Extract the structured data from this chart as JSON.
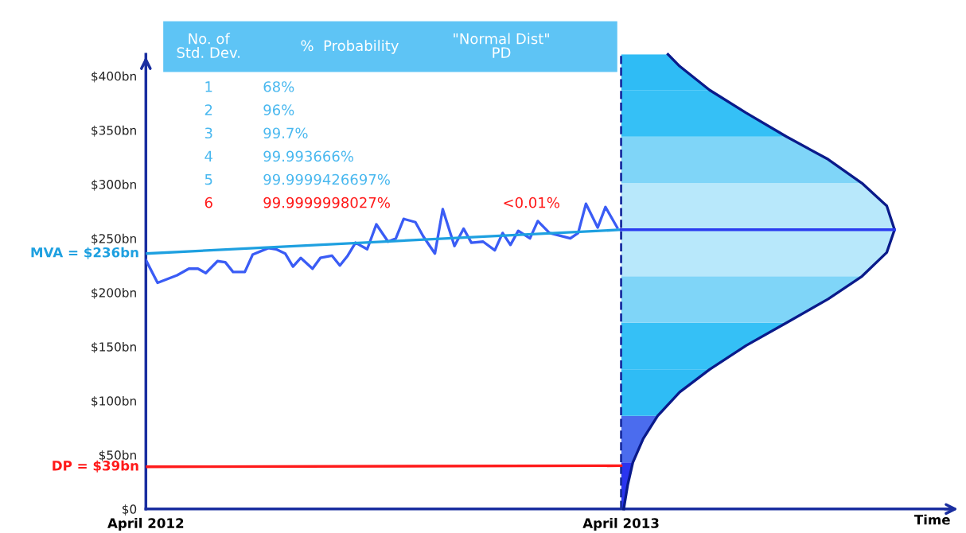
{
  "chart_data": {
    "type": "line",
    "xlabel": "Time",
    "xlim": [
      "2012-04-01",
      "2013-12-10"
    ],
    "ylim": [
      0,
      420
    ],
    "xticks": [
      {
        "value": "2012-04-01",
        "label": "April 2012"
      },
      {
        "value": "2013-04-01",
        "label": "April 2013"
      }
    ],
    "yticks": [
      {
        "value": 0,
        "label": "$0"
      },
      {
        "value": 50,
        "label": "$50bn"
      },
      {
        "value": 100,
        "label": "$100bn"
      },
      {
        "value": 150,
        "label": "$150bn"
      },
      {
        "value": 200,
        "label": "$200bn"
      },
      {
        "value": 250,
        "label": "$250bn"
      },
      {
        "value": 300,
        "label": "$300bn"
      },
      {
        "value": 350,
        "label": "$350bn"
      },
      {
        "value": 400,
        "label": "$400bn"
      }
    ],
    "grid": false,
    "legend": false,
    "marker": "none",
    "line_style": "solid",
    "annotations": [
      "No. of\nStd. Dev.",
      "%  Probability",
      "\"Normal Dist\"\nPD",
      "1",
      "68%",
      "2",
      "96%",
      "3",
      "99.7%",
      "4",
      "99.993666%",
      "5",
      "99.9999426697%",
      "6",
      "99.9999998027%",
      "<0.01%"
    ],
    "ref_lines": [
      {
        "axis": "x",
        "value": "2013-04-01",
        "color": "#1a2ea0",
        "line_style": "dashed"
      }
    ],
    "bands": [
      {
        "axis": "y",
        "from": 0,
        "to": 43,
        "color": "#2a35f0"
      },
      {
        "axis": "y",
        "from": 43,
        "to": 86,
        "color": "#4b6cee"
      },
      {
        "axis": "y",
        "from": 86,
        "to": 129,
        "color": "#2fbcf5"
      },
      {
        "axis": "y",
        "from": 129,
        "to": 172,
        "color": "#35c0f6"
      },
      {
        "axis": "y",
        "from": 172,
        "to": 215,
        "color": "#7fd5f8"
      },
      {
        "axis": "y",
        "from": 215,
        "to": 258,
        "color": "#b8e8fb"
      },
      {
        "axis": "y",
        "from": 258,
        "to": 301,
        "color": "#b8e8fb"
      },
      {
        "axis": "y",
        "from": 301,
        "to": 344,
        "color": "#7fd5f8"
      },
      {
        "axis": "y",
        "from": 344,
        "to": 387,
        "color": "#35c0f6"
      },
      {
        "axis": "y",
        "from": 387,
        "to": 420,
        "color": "#2fbcf5"
      }
    ],
    "series": [
      {
        "color": "#3a5cf5",
        "x": [
          "2012-04-01",
          "2012-04-10",
          "2012-04-25",
          "2012-05-04",
          "2012-05-11",
          "2012-05-17",
          "2012-05-26",
          "2012-06-01",
          "2012-06-07",
          "2012-06-16",
          "2012-06-22",
          "2012-07-04",
          "2012-07-10",
          "2012-07-17",
          "2012-07-23",
          "2012-07-29",
          "2012-08-07",
          "2012-08-13",
          "2012-08-22",
          "2012-08-28",
          "2012-09-03",
          "2012-09-09",
          "2012-09-18",
          "2012-09-25",
          "2012-10-04",
          "2012-10-10",
          "2012-10-16",
          "2012-10-25",
          "2012-10-31",
          "2012-11-09",
          "2012-11-15",
          "2012-11-24",
          "2012-12-01",
          "2012-12-07",
          "2012-12-16",
          "2012-12-25",
          "2012-12-31",
          "2013-01-06",
          "2013-01-12",
          "2013-01-21",
          "2013-01-27",
          "2013-02-05",
          "2013-02-21",
          "2013-02-27",
          "2013-03-05",
          "2013-03-14",
          "2013-03-20",
          "2013-03-29"
        ],
        "values": [
          230,
          209,
          216,
          222,
          222,
          218,
          229,
          228,
          219,
          219,
          235,
          241,
          240,
          236,
          224,
          232,
          222,
          232,
          234,
          225,
          234,
          246,
          240,
          263,
          247,
          250,
          268,
          265,
          252,
          236,
          277,
          243,
          259,
          246,
          247,
          239,
          255,
          244,
          257,
          250,
          266,
          255,
          250,
          255,
          282,
          260,
          279,
          260
        ]
      },
      {
        "name": "MVA = $236bn",
        "color": "#1ea0e0",
        "x": [
          "2012-04-01",
          "2013-04-01"
        ],
        "values": [
          236,
          258
        ]
      },
      {
        "name": "DP = $39bn",
        "color": "#ff1a1a",
        "x": [
          "2012-04-01",
          "2013-04-01"
        ],
        "values": [
          39,
          40
        ]
      },
      {
        "color": "#0a1a8a",
        "x": [
          "2013-04-03",
          "2013-04-06",
          "2013-04-10",
          "2013-04-18",
          "2013-04-29",
          "2013-05-16",
          "2013-06-08",
          "2013-07-06",
          "2013-08-06",
          "2013-09-07",
          "2013-10-03",
          "2013-10-22",
          "2013-10-28",
          "2013-10-22",
          "2013-10-03",
          "2013-09-07",
          "2013-08-06",
          "2013-07-06",
          "2013-06-08",
          "2013-05-16",
          "2013-05-07"
        ],
        "values": [
          0,
          22,
          43,
          65,
          86,
          108,
          129,
          151,
          172,
          194,
          215,
          237,
          258,
          280,
          301,
          323,
          344,
          366,
          387,
          409,
          420
        ]
      },
      {
        "color": "#2a3cf0",
        "x": [
          "2013-04-01",
          "2013-10-28"
        ],
        "values": [
          258,
          258
        ]
      }
    ]
  }
}
